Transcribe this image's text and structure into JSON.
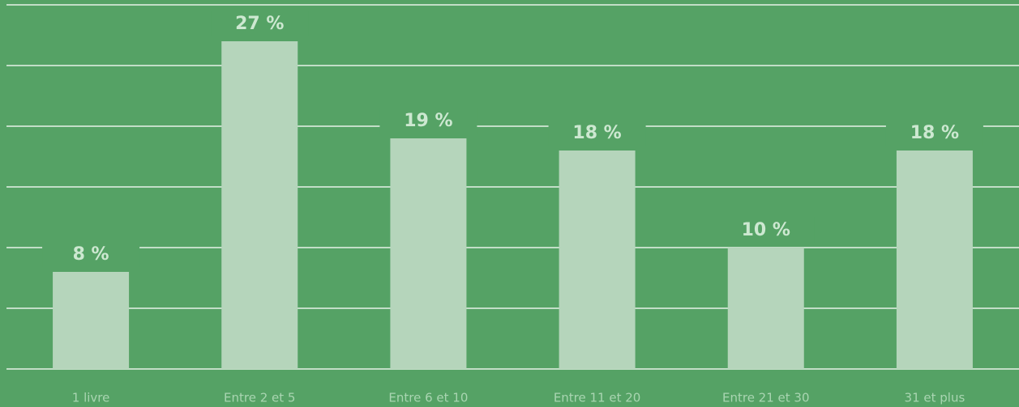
{
  "chart_data": {
    "type": "bar",
    "categories": [
      "1 livre",
      "Entre 2 et 5",
      "Entre 6 et 10",
      "Entre 11 et 20",
      "Entre 21 et 30",
      "31 et plus"
    ],
    "values": [
      8,
      27,
      19,
      18,
      10,
      18
    ],
    "value_labels": [
      "8 %",
      "27 %",
      "19 %",
      "18 %",
      "10 %",
      "18 %"
    ],
    "color": "#b5d5bb",
    "ylim": [
      0,
      30
    ],
    "yticks": [
      0,
      5,
      10,
      15,
      20,
      25,
      30
    ],
    "grid": true
  }
}
